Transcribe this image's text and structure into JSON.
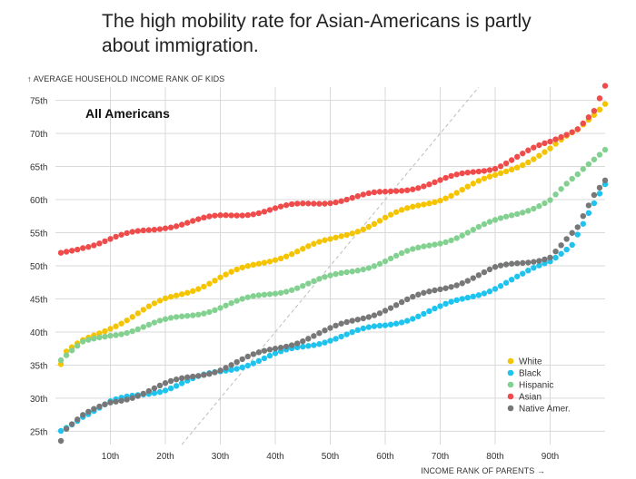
{
  "headline": "The high mobility rate for Asian-Americans is partly about immigration.",
  "chart_data": {
    "type": "scatter",
    "subtitle": "All Americans",
    "ylabel": "↑ AVERAGE HOUSEHOLD INCOME RANK OF KIDS",
    "xlabel": "INCOME RANK OF PARENTS →",
    "xlim": [
      0,
      100
    ],
    "ylim": [
      23,
      77
    ],
    "x_ticks": [
      10,
      20,
      30,
      40,
      50,
      60,
      70,
      80,
      90
    ],
    "x_tick_labels": [
      "10th",
      "20th",
      "30th",
      "40th",
      "50th",
      "60th",
      "70th",
      "80th",
      "90th"
    ],
    "y_ticks": [
      25,
      30,
      35,
      40,
      45,
      50,
      55,
      60,
      65,
      70,
      75
    ],
    "y_tick_labels": [
      "25th",
      "30th",
      "35th",
      "40th",
      "45th",
      "50th",
      "55th",
      "60th",
      "65th",
      "70th",
      "75th"
    ],
    "reference_line": "y = x (dashed diagonal)",
    "legend_position": "bottom-right",
    "series": [
      {
        "name": "White",
        "color": "#f5c400",
        "anchors": [
          [
            1,
            35
          ],
          [
            2,
            36.8
          ],
          [
            5,
            38.5
          ],
          [
            10,
            40.8
          ],
          [
            20,
            44.8
          ],
          [
            30,
            48.2
          ],
          [
            40,
            51.2
          ],
          [
            50,
            53.8
          ],
          [
            60,
            57.2
          ],
          [
            70,
            60.2
          ],
          [
            80,
            63.5
          ],
          [
            90,
            67.6
          ],
          [
            95,
            70.4
          ],
          [
            98,
            73
          ],
          [
            100,
            74.8
          ]
        ]
      },
      {
        "name": "Black",
        "color": "#1ec3ee",
        "anchors": [
          [
            1,
            25.1
          ],
          [
            5,
            27.5
          ],
          [
            10,
            29.3
          ],
          [
            20,
            31.5
          ],
          [
            30,
            34
          ],
          [
            40,
            36.5
          ],
          [
            50,
            39
          ],
          [
            60,
            41
          ],
          [
            70,
            43.6
          ],
          [
            80,
            46.8
          ],
          [
            85,
            48.5
          ],
          [
            90,
            50.7
          ],
          [
            94,
            53.5
          ],
          [
            97,
            58
          ],
          [
            100,
            62
          ]
        ]
      },
      {
        "name": "Hispanic",
        "color": "#83d190",
        "anchors": [
          [
            1,
            35.8
          ],
          [
            5,
            38.2
          ],
          [
            10,
            39.6
          ],
          [
            20,
            41.6
          ],
          [
            30,
            43.8
          ],
          [
            40,
            46
          ],
          [
            50,
            48.2
          ],
          [
            60,
            50.8
          ],
          [
            70,
            53.6
          ],
          [
            80,
            56.6
          ],
          [
            90,
            60
          ],
          [
            95,
            63.5
          ],
          [
            100,
            67.8
          ]
        ]
      },
      {
        "name": "Asian",
        "color": "#f04b4b",
        "anchors": [
          [
            1,
            51.8
          ],
          [
            5,
            53
          ],
          [
            10,
            54
          ],
          [
            20,
            56
          ],
          [
            30,
            57.4
          ],
          [
            40,
            58.6
          ],
          [
            50,
            59.8
          ],
          [
            60,
            61
          ],
          [
            70,
            62.8
          ],
          [
            80,
            65
          ],
          [
            90,
            68.6
          ],
          [
            95,
            71
          ],
          [
            98,
            73.5
          ],
          [
            100,
            77
          ]
        ]
      },
      {
        "name": "Native Amer.",
        "color": "#777777",
        "anchors": [
          [
            1,
            23.8
          ],
          [
            2,
            25.5
          ],
          [
            5,
            27.2
          ],
          [
            10,
            29.3
          ],
          [
            20,
            32
          ],
          [
            30,
            34.5
          ],
          [
            40,
            37.5
          ],
          [
            50,
            40.3
          ],
          [
            60,
            43.5
          ],
          [
            70,
            46.5
          ],
          [
            80,
            49.5
          ],
          [
            90,
            51.5
          ],
          [
            95,
            55.5
          ],
          [
            98,
            60.5
          ],
          [
            100,
            63
          ]
        ]
      }
    ]
  }
}
